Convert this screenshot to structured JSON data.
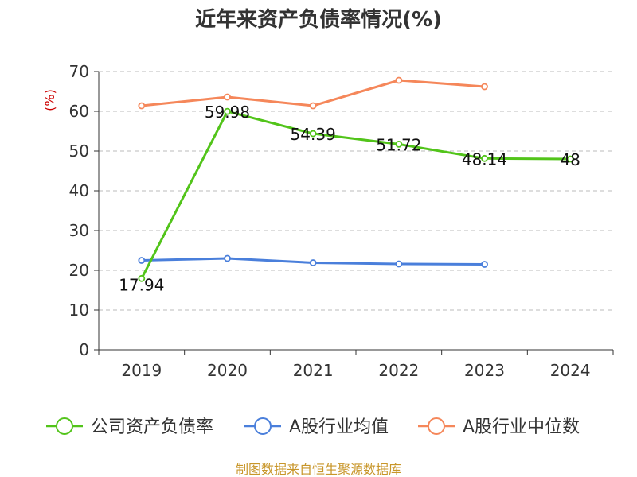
{
  "title": "近年来资产负债率情况(%)",
  "source": "制图数据来自恒生聚源数据库",
  "chart_data": {
    "type": "line",
    "title": "近年来资产负债率情况(%)",
    "ylabel": "(%)",
    "xlabel": "",
    "categories": [
      "2019",
      "2020",
      "2021",
      "2022",
      "2023",
      "2024"
    ],
    "ylim": [
      0,
      70
    ],
    "yticks": [
      0,
      10,
      20,
      30,
      40,
      50,
      60,
      70
    ],
    "grid": true,
    "legend_position": "bottom",
    "series": [
      {
        "name": "公司资产负债率",
        "color": "#52c41a",
        "values": [
          17.94,
          59.98,
          54.39,
          51.72,
          48.14,
          48
        ],
        "labels": [
          "17.94",
          "59.98",
          "54.39",
          "51.72",
          "48.14",
          "48"
        ]
      },
      {
        "name": "A股行业均值",
        "color": "#4a7fdb",
        "values": [
          22.5,
          23.0,
          21.9,
          21.6,
          21.5,
          null
        ],
        "labels": []
      },
      {
        "name": "A股行业中位数",
        "color": "#f5875a",
        "values": [
          61.4,
          63.6,
          61.4,
          67.8,
          66.2,
          null
        ],
        "labels": []
      }
    ]
  }
}
